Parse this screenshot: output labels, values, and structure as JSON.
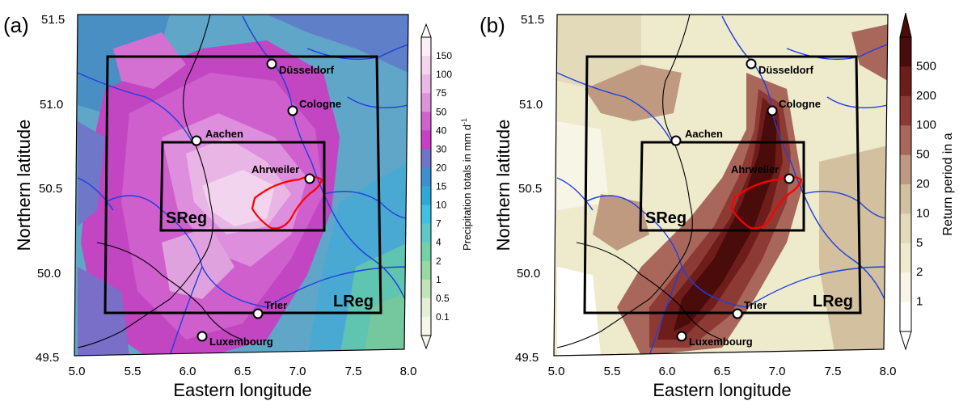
{
  "panels": [
    {
      "label": "(a)",
      "lat_ticks": [
        "51.5",
        "51.0",
        "50.5",
        "50.0",
        "49.5"
      ],
      "lon_ticks": [
        "5.0",
        "5.5",
        "6.0",
        "6.5",
        "7.0",
        "7.5",
        "8.0"
      ],
      "ylabel": "Northern latitude",
      "xlabel": "Eastern longitude",
      "colorbar_label": "Precipitation totals in mm d",
      "colorbar_label_sup": "-1",
      "colorbar_ticks": [
        "150",
        "100",
        "75",
        "50",
        "40",
        "30",
        "20",
        "15",
        "10",
        "7",
        "4",
        "2",
        "1",
        "0.5",
        "0.1"
      ],
      "colorbar_colors": [
        "#fbeef7",
        "#f3d6ee",
        "#eab8e6",
        "#df92dc",
        "#d261d0",
        "#c63fc4",
        "#6f74c8",
        "#3c8fd0",
        "#2fa8d8",
        "#3fc2e2",
        "#5cc9c6",
        "#74d0a6",
        "#98d8a2",
        "#c3e4b8",
        "#e6efd6",
        "#f6f6ec"
      ],
      "cities": [
        {
          "name": "Düsseldorf"
        },
        {
          "name": "Cologne"
        },
        {
          "name": "Aachen"
        },
        {
          "name": "Ahrweiler"
        },
        {
          "name": "Trier"
        },
        {
          "name": "Luxembourg"
        }
      ],
      "regions": {
        "small": "SReg",
        "large": "LReg"
      }
    },
    {
      "label": "(b)",
      "lat_ticks": [
        "51.5",
        "51.0",
        "50.5",
        "50.0",
        "49.5"
      ],
      "lon_ticks": [
        "5.0",
        "5.5",
        "6.0",
        "6.5",
        "7.0",
        "7.5",
        "8.0"
      ],
      "ylabel": "Northern latitude",
      "xlabel": "Eastern longitude",
      "colorbar_label": "Return period in a",
      "colorbar_label_sup": "",
      "colorbar_ticks": [
        "500",
        "200",
        "100",
        "50",
        "20",
        "10",
        "5",
        "2",
        "1"
      ],
      "colorbar_colors": [
        "#4a0b0b",
        "#6e1d1a",
        "#8c3a33",
        "#a8675a",
        "#bf9a80",
        "#d2c09e",
        "#e2dab8",
        "#eeeacc",
        "#f7f6e6",
        "#ffffff"
      ],
      "cities": [
        {
          "name": "Düsseldorf"
        },
        {
          "name": "Cologne"
        },
        {
          "name": "Aachen"
        },
        {
          "name": "Ahrweiler"
        },
        {
          "name": "Trier"
        },
        {
          "name": "Luxembourg"
        }
      ],
      "regions": {
        "small": "SReg",
        "large": "LReg"
      }
    }
  ]
}
